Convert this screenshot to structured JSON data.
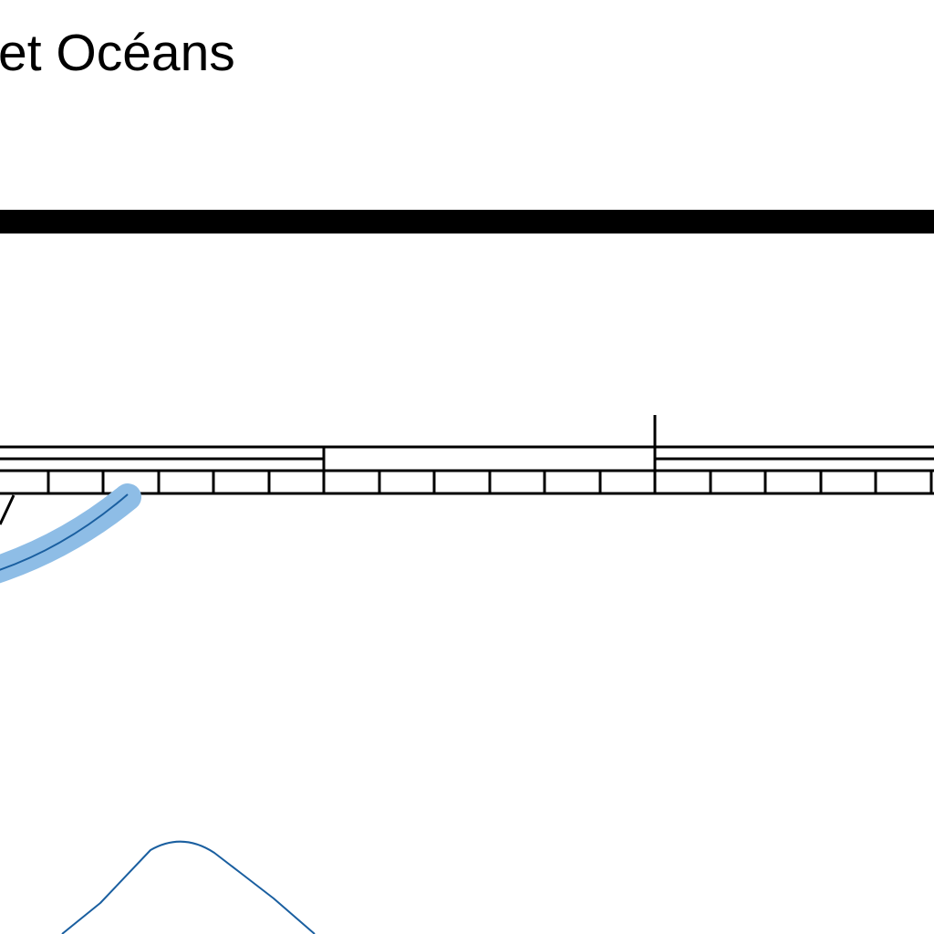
{
  "header": {
    "title": "et Océans"
  },
  "colors": {
    "ink": "#000000",
    "water_line": "#1a5fa0",
    "water_fill": "#8ebde6",
    "background": "#ffffff"
  },
  "graphic": {
    "elements": [
      "neatline-border",
      "graduated-scale-bar",
      "water-feature",
      "contour-line"
    ]
  }
}
